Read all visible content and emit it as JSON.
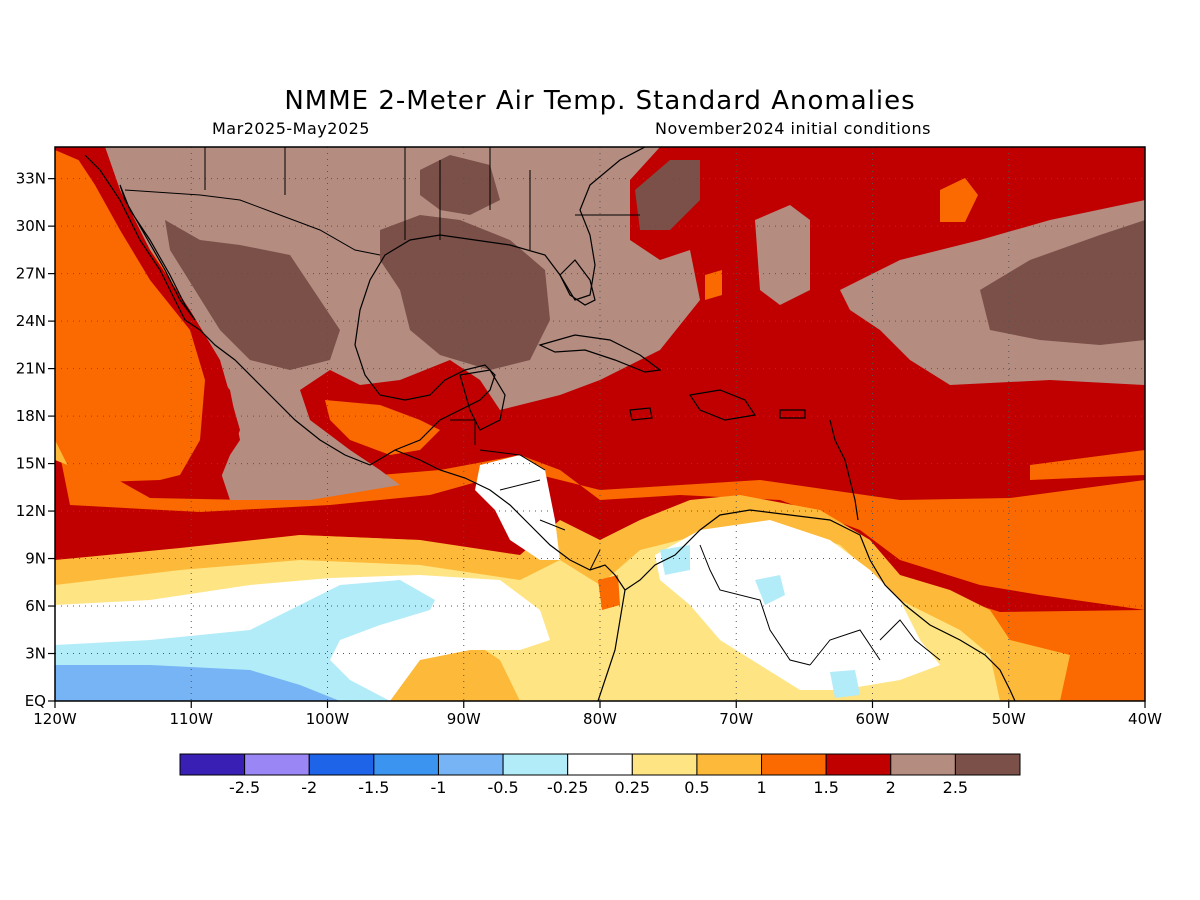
{
  "title": "NMME 2-Meter Air Temp. Standard Anomalies",
  "subtitle_left": "Mar2025-May2025",
  "subtitle_right": "November2024 initial conditions",
  "map": {
    "lon_range": [
      -120,
      -40
    ],
    "lat_range": [
      0,
      35
    ],
    "x_ticks": [
      {
        "value": -120,
        "label": "120W"
      },
      {
        "value": -110,
        "label": "110W"
      },
      {
        "value": -100,
        "label": "100W"
      },
      {
        "value": -90,
        "label": "90W"
      },
      {
        "value": -80,
        "label": "80W"
      },
      {
        "value": -70,
        "label": "70W"
      },
      {
        "value": -60,
        "label": "60W"
      },
      {
        "value": -50,
        "label": "50W"
      },
      {
        "value": -40,
        "label": "40W"
      }
    ],
    "y_ticks": [
      {
        "value": 0,
        "label": "EQ"
      },
      {
        "value": 3,
        "label": "3N"
      },
      {
        "value": 6,
        "label": "6N"
      },
      {
        "value": 9,
        "label": "9N"
      },
      {
        "value": 12,
        "label": "12N"
      },
      {
        "value": 15,
        "label": "15N"
      },
      {
        "value": 18,
        "label": "18N"
      },
      {
        "value": 21,
        "label": "21N"
      },
      {
        "value": 24,
        "label": "24N"
      },
      {
        "value": 27,
        "label": "27N"
      },
      {
        "value": 30,
        "label": "30N"
      },
      {
        "value": 33,
        "label": "33N"
      }
    ],
    "grid": "dotted"
  },
  "legend": {
    "colors": [
      "#3a1fb4",
      "#9b86f5",
      "#1e64e8",
      "#3a94f0",
      "#76b4f5",
      "#b2ecf8",
      "#ffffff",
      "#fee482",
      "#fdb93a",
      "#fa6a00",
      "#c00000",
      "#b48c80",
      "#7a5048"
    ],
    "labels": [
      "-2.5",
      "-2",
      "-1.5",
      "-1",
      "-0.5",
      "-0.25",
      "0.25",
      "0.5",
      "1",
      "1.5",
      "2",
      "2.5"
    ]
  }
}
